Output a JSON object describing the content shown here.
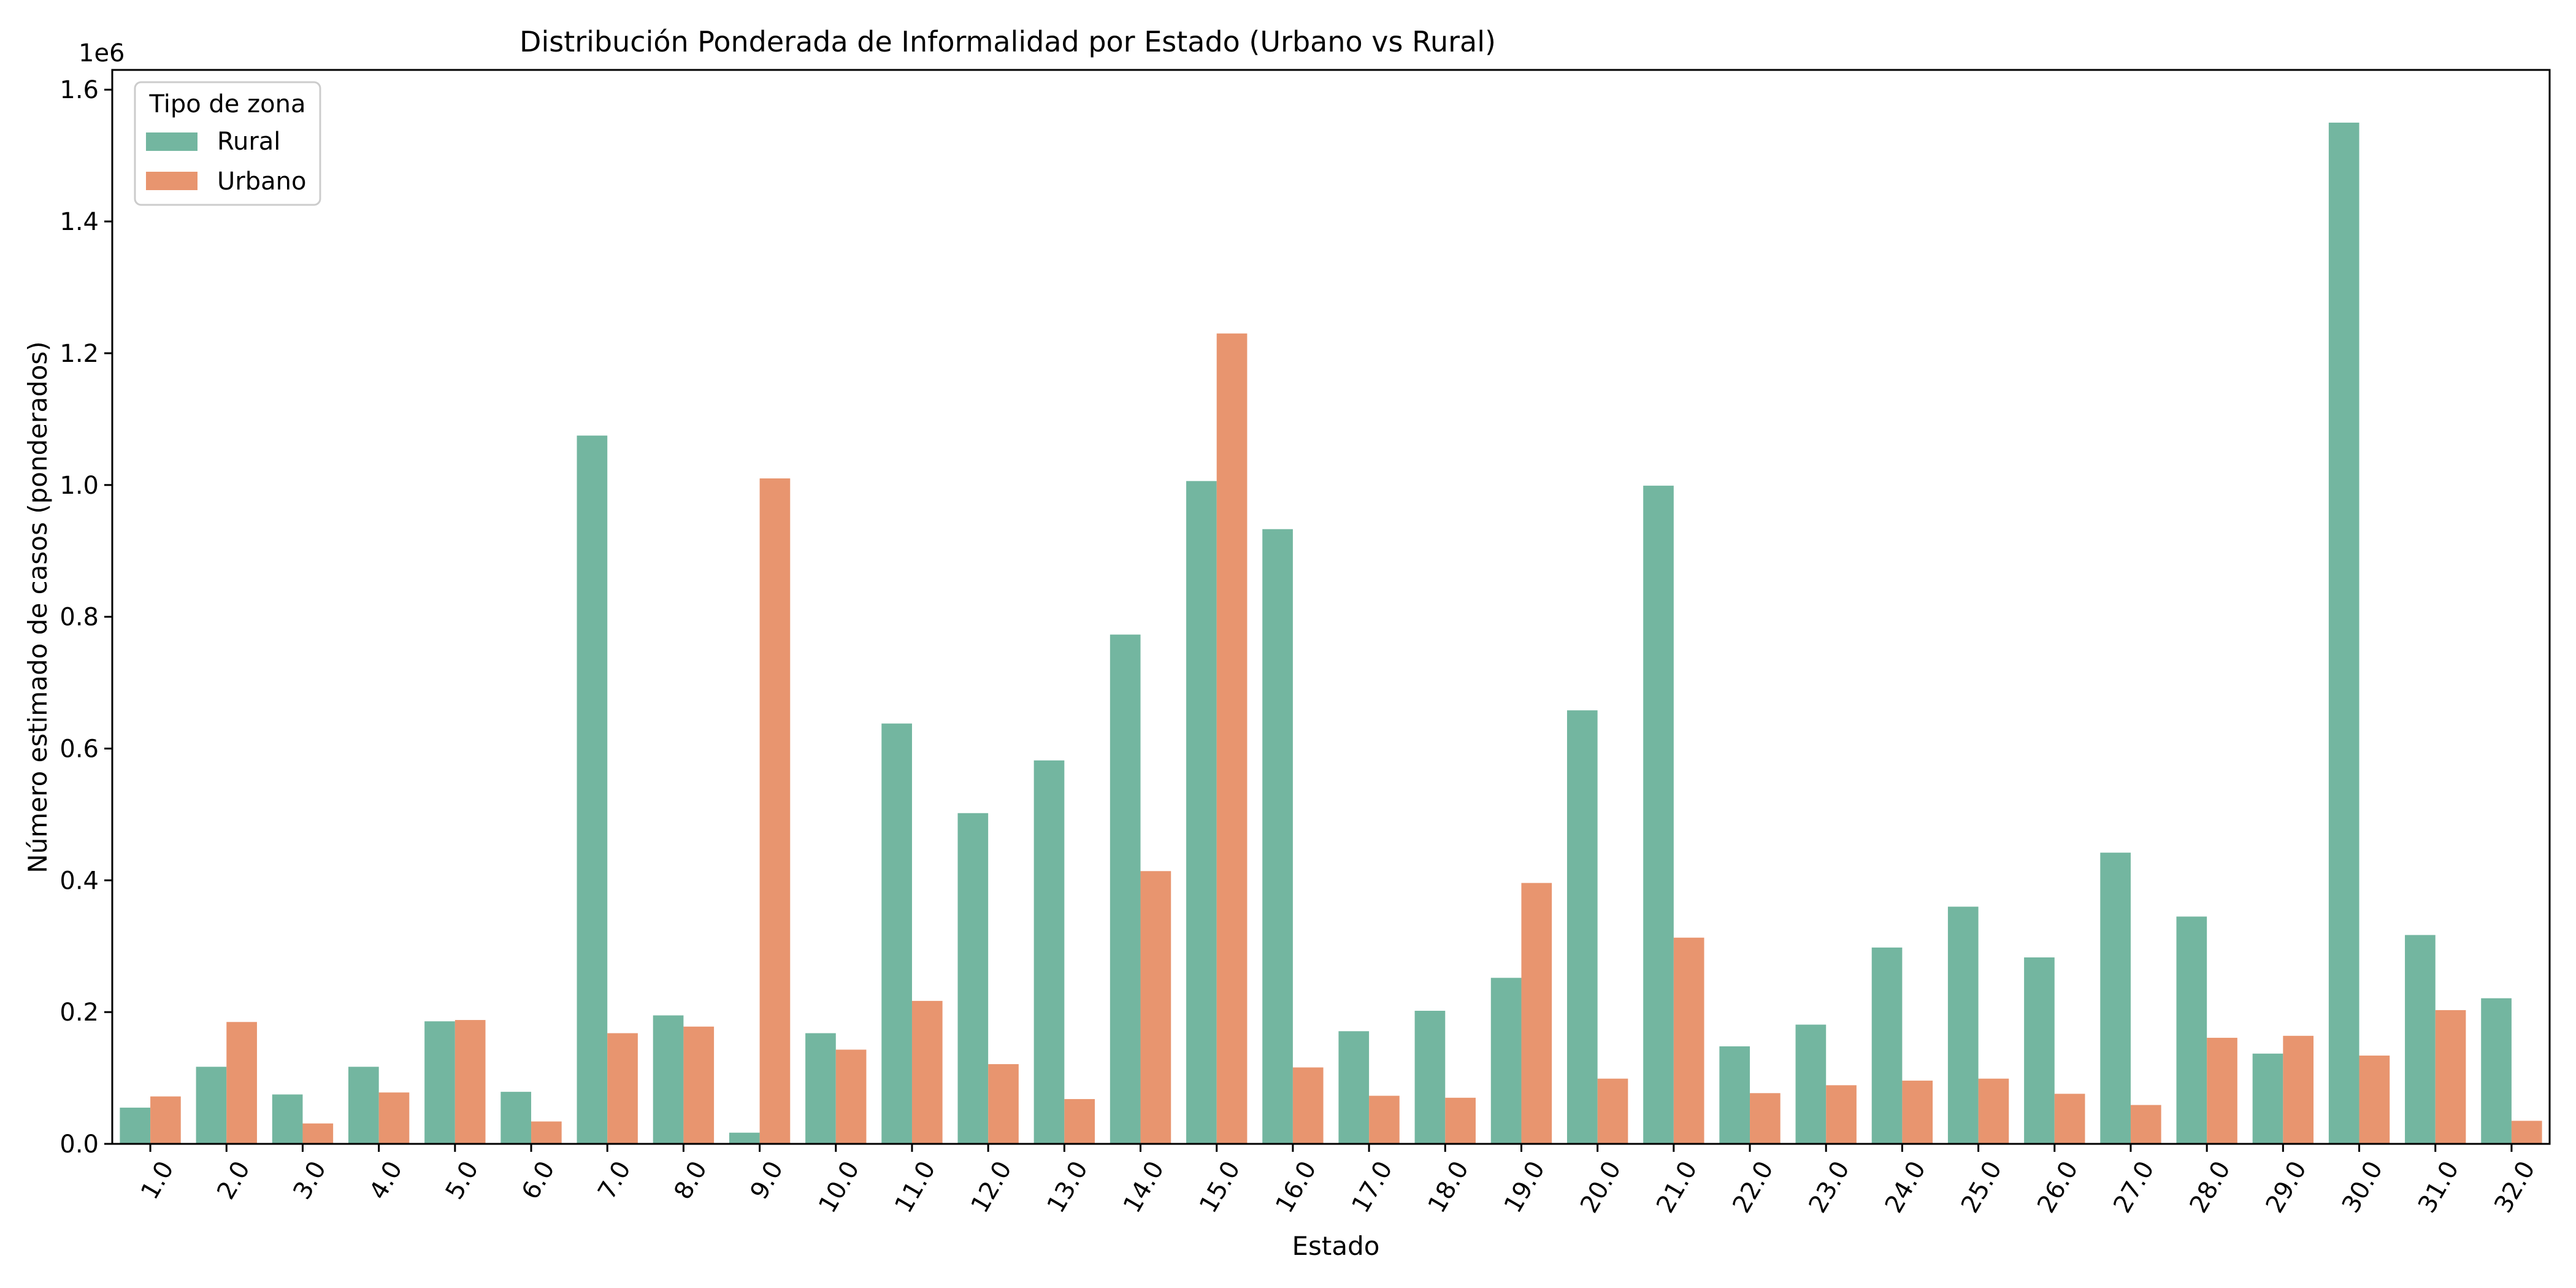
{
  "chart_data": {
    "type": "bar",
    "title": "Distribución Ponderada de Informalidad por Estado (Urbano vs Rural)",
    "xlabel": "Estado",
    "ylabel": "Número estimado de casos (ponderados)",
    "y_offset_label": "1e6",
    "y_scale": 1000000,
    "ylim": [
      0,
      1.63
    ],
    "y_ticks": [
      0.0,
      0.2,
      0.4,
      0.6,
      0.8,
      1.0,
      1.2,
      1.4,
      1.6
    ],
    "y_tick_labels": [
      "0.0",
      "0.2",
      "0.4",
      "0.6",
      "0.8",
      "1.0",
      "1.2",
      "1.4",
      "1.6"
    ],
    "grid": false,
    "legend": {
      "title": "Tipo de zona",
      "placement": "top-left"
    },
    "categories": [
      "1.0",
      "2.0",
      "3.0",
      "4.0",
      "5.0",
      "6.0",
      "7.0",
      "8.0",
      "9.0",
      "10.0",
      "11.0",
      "12.0",
      "13.0",
      "14.0",
      "15.0",
      "16.0",
      "17.0",
      "18.0",
      "19.0",
      "20.0",
      "21.0",
      "22.0",
      "23.0",
      "24.0",
      "25.0",
      "26.0",
      "27.0",
      "28.0",
      "29.0",
      "30.0",
      "31.0",
      "32.0"
    ],
    "series": [
      {
        "name": "Rural",
        "color": "#73b6a0",
        "values": [
          55000,
          117000,
          75000,
          117000,
          186000,
          79000,
          1075000,
          195000,
          17000,
          168000,
          638000,
          502000,
          582000,
          773000,
          1006000,
          933000,
          171000,
          202000,
          252000,
          658000,
          999000,
          148000,
          181000,
          298000,
          360000,
          283000,
          442000,
          345000,
          137000,
          1550000,
          317000,
          221000
        ]
      },
      {
        "name": "Urbano",
        "color": "#e8956f",
        "values": [
          72000,
          185000,
          31000,
          78000,
          188000,
          34000,
          168000,
          178000,
          1010000,
          143000,
          217000,
          121000,
          68000,
          414000,
          1230000,
          116000,
          73000,
          70000,
          396000,
          99000,
          313000,
          77000,
          89000,
          96000,
          99000,
          76000,
          59000,
          161000,
          164000,
          134000,
          203000,
          35000
        ]
      }
    ]
  }
}
